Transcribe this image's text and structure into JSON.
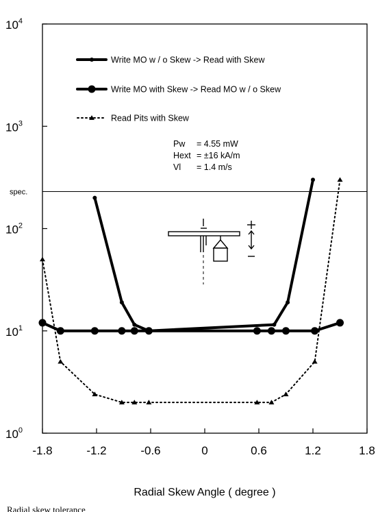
{
  "chart_data": {
    "type": "line",
    "xlabel": "Radial Skew Angle ( degree )",
    "ylabel": "",
    "xlim": [
      -1.8,
      1.8
    ],
    "ylim": [
      1,
      10000
    ],
    "yscale": "log",
    "xticks": [
      "-1.8",
      "-1.2",
      "-0.6",
      "0",
      "0.6",
      "1.2",
      "1.8"
    ],
    "yticks": [
      {
        "base": "10",
        "exp": "0"
      },
      {
        "base": "10",
        "exp": "1"
      },
      {
        "base": "10",
        "exp": "2"
      },
      {
        "base": "10",
        "exp": "3"
      },
      {
        "base": "10",
        "exp": "4"
      }
    ],
    "grid": false,
    "legend_position": "top",
    "spec_line": {
      "label": "spec.",
      "value": 230
    },
    "parameters": [
      {
        "name": "Pw",
        "value": "= 4.55 mW"
      },
      {
        "name": "Hext",
        "value": "= ±16 kA/m"
      },
      {
        "name": "Vl",
        "value": "= 1.4 m/s"
      }
    ],
    "series": [
      {
        "name": "Write MO w / o Skew -> Read with Skew",
        "style": "solid-small-dot",
        "x": [
          -1.22,
          -0.92,
          -0.78,
          -0.62,
          0.77,
          0.92,
          1.2
        ],
        "y": [
          200,
          19,
          11.5,
          10,
          11.5,
          19,
          300
        ]
      },
      {
        "name": "Write MO with Skew -> Read MO w / o Skew",
        "style": "solid-large-dot",
        "x": [
          -1.8,
          -1.6,
          -1.22,
          -0.92,
          -0.78,
          -0.62,
          0.58,
          0.74,
          0.9,
          1.22,
          1.5
        ],
        "y": [
          12,
          10,
          10,
          10,
          10,
          10,
          10,
          10,
          10,
          10,
          12
        ]
      },
      {
        "name": "Read Pits with Skew",
        "style": "dotted-triangle",
        "x": [
          -1.8,
          -1.6,
          -1.22,
          -0.92,
          -0.78,
          -0.62,
          0.58,
          0.74,
          0.9,
          1.22,
          1.5
        ],
        "y": [
          50,
          5,
          2.4,
          2,
          2,
          2,
          2,
          2,
          2.4,
          5,
          300
        ]
      }
    ]
  },
  "caption": "Radial skew tolerance"
}
